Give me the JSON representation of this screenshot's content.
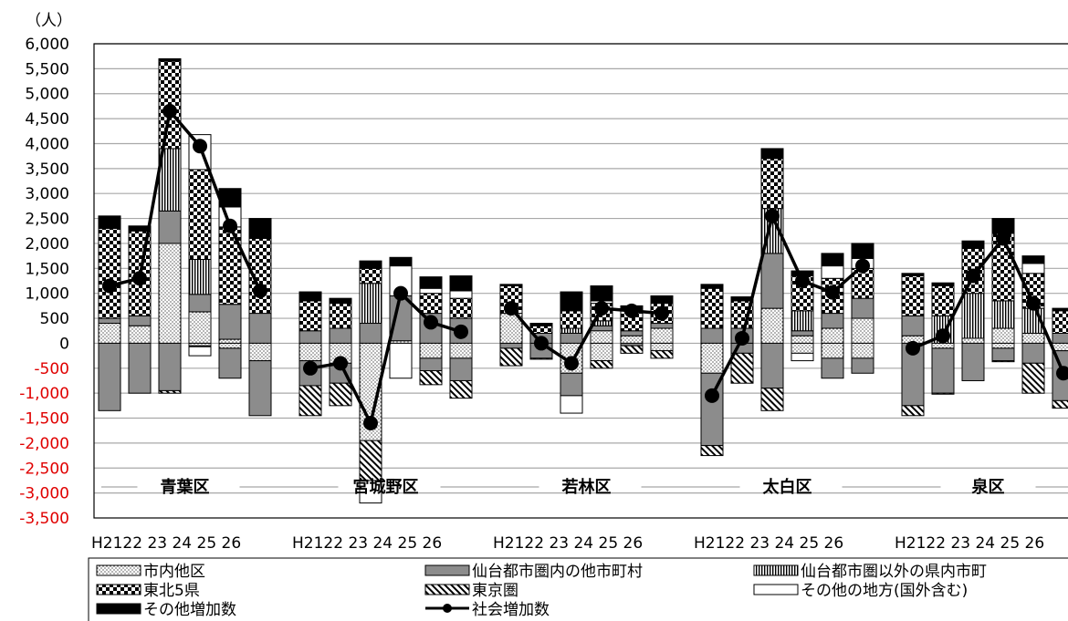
{
  "chart_data": {
    "type": "bar",
    "stacked": true,
    "unit_label": "（人）",
    "ylim": [
      -3500,
      6000
    ],
    "y_ticks": [
      6000,
      5500,
      5000,
      4500,
      4000,
      3500,
      3000,
      2500,
      2000,
      1500,
      1000,
      500,
      0,
      -500,
      -1000,
      -1500,
      -2000,
      -2500,
      -3000,
      -3500
    ],
    "y_tick_labels": [
      "6,000",
      "5,500",
      "5,000",
      "4,500",
      "4,000",
      "3,500",
      "3,000",
      "2,500",
      "2,000",
      "1,500",
      "1,000",
      "500",
      "0",
      "-500",
      "-1,000",
      "-1,500",
      "-2,000",
      "-2,500",
      "-3,000",
      "-3,500"
    ],
    "negative_tick_color": "#e00000",
    "gridlines": true,
    "year_labels": [
      "H21",
      "22",
      "23",
      "24",
      "25",
      "26"
    ],
    "groups": [
      {
        "name": "青葉区",
        "stacks": [
          {
            "pos": [
              400,
              100,
              0,
              1800,
              0,
              250
            ],
            "neg": [
              0,
              -1350,
              0
            ]
          },
          {
            "pos": [
              350,
              200,
              0,
              1700,
              0,
              100
            ],
            "neg": [
              0,
              -1000,
              0
            ]
          },
          {
            "pos": [
              2000,
              650,
              1250,
              1750,
              0,
              50
            ],
            "neg": [
              0,
              -950,
              -50
            ]
          },
          {
            "pos": [
              630,
              350,
              700,
              1800,
              700,
              0
            ],
            "neg": [
              -50,
              -20,
              0,
              -180
            ]
          },
          {
            "pos": [
              80,
              700,
              0,
              1550,
              400,
              370
            ],
            "neg": [
              -100,
              -600,
              0
            ]
          },
          {
            "pos": [
              0,
              600,
              0,
              1500,
              0,
              400
            ],
            "neg": [
              -350,
              -1100,
              0
            ]
          }
        ],
        "social": [
          1150,
          1300,
          4650,
          3950,
          2350,
          1050
        ]
      },
      {
        "name": "宮城野区",
        "stacks": [
          {
            "pos": [
              0,
              250,
              0,
              600,
              0,
              180
            ],
            "neg": [
              -350,
              -500,
              -600
            ]
          },
          {
            "pos": [
              0,
              300,
              0,
              500,
              0,
              100
            ],
            "neg": [
              -400,
              -400,
              -450
            ]
          },
          {
            "pos": [
              0,
              400,
              800,
              300,
              0,
              150
            ],
            "neg": [
              -1950,
              0,
              -800,
              -450
            ]
          },
          {
            "pos": [
              50,
              900,
              0,
              0,
              600,
              170
            ],
            "neg": [
              0,
              0,
              0,
              -700
            ]
          },
          {
            "pos": [
              0,
              600,
              0,
              400,
              100,
              230
            ],
            "neg": [
              -300,
              -250,
              -280
            ]
          },
          {
            "pos": [
              0,
              500,
              0,
              400,
              150,
              300
            ],
            "neg": [
              -300,
              -450,
              -350
            ]
          }
        ],
        "social": [
          -500,
          -400,
          -1600,
          1000,
          420,
          230
        ]
      },
      {
        "name": "若林区",
        "stacks": [
          {
            "pos": [
              600,
              0,
              0,
              550,
              0,
              30
            ],
            "neg": [
              0,
              -100,
              -350
            ]
          },
          {
            "pos": [
              0,
              200,
              0,
              150,
              0,
              50
            ],
            "neg": [
              0,
              -300,
              -20
            ]
          },
          {
            "pos": [
              0,
              200,
              100,
              350,
              0,
              380
            ],
            "neg": [
              -600,
              -450,
              0,
              -350
            ]
          },
          {
            "pos": [
              250,
              100,
              100,
              350,
              50,
              300
            ],
            "neg": [
              -350,
              0,
              -150
            ]
          },
          {
            "pos": [
              150,
              100,
              0,
              400,
              0,
              100
            ],
            "neg": [
              0,
              -50,
              -150
            ]
          },
          {
            "pos": [
              300,
              100,
              0,
              400,
              0,
              150
            ],
            "neg": [
              -150,
              0,
              -150
            ]
          }
        ],
        "social": [
          700,
          0,
          -400,
          700,
          650,
          600
        ]
      },
      {
        "name": "太白区",
        "stacks": [
          {
            "pos": [
              0,
              300,
              0,
              800,
              0,
              80
            ],
            "neg": [
              -600,
              -1450,
              -200
            ]
          },
          {
            "pos": [
              0,
              300,
              0,
              550,
              0,
              80
            ],
            "neg": [
              0,
              -200,
              -600
            ]
          },
          {
            "pos": [
              700,
              1100,
              900,
              1000,
              0,
              200
            ],
            "neg": [
              0,
              -900,
              -450
            ]
          },
          {
            "pos": [
              150,
              100,
              400,
              700,
              0,
              100
            ],
            "neg": [
              -200,
              0,
              0,
              -150
            ]
          },
          {
            "pos": [
              300,
              300,
              0,
              700,
              250,
              250
            ],
            "neg": [
              -300,
              -400,
              0
            ]
          },
          {
            "pos": [
              500,
              400,
              0,
              600,
              200,
              300
            ],
            "neg": [
              -300,
              -300,
              0
            ]
          }
        ],
        "social": [
          -1050,
          100,
          2550,
          1250,
          1020,
          1550
        ]
      },
      {
        "name": "泉区",
        "stacks": [
          {
            "pos": [
              150,
              400,
              0,
              800,
              0,
              50
            ],
            "neg": [
              0,
              -1250,
              -200
            ]
          },
          {
            "pos": [
              0,
              0,
              550,
              600,
              0,
              60
            ],
            "neg": [
              -100,
              -900,
              -20
            ]
          },
          {
            "pos": [
              100,
              0,
              900,
              900,
              0,
              150
            ],
            "neg": [
              0,
              -750,
              0
            ]
          },
          {
            "pos": [
              300,
              0,
              550,
              1350,
              0,
              300
            ],
            "neg": [
              -100,
              -250,
              -20
            ]
          },
          {
            "pos": [
              200,
              0,
              500,
              700,
              200,
              150
            ],
            "neg": [
              0,
              -400,
              -600
            ]
          },
          {
            "pos": [
              0,
              200,
              0,
              450,
              0,
              50
            ],
            "neg": [
              -150,
              -1000,
              -150
            ]
          }
        ],
        "social": [
          -100,
          150,
          1350,
          2100,
          800,
          -600
        ]
      }
    ],
    "legend": [
      {
        "key": "shinai",
        "label": "市内他区"
      },
      {
        "key": "toshiken",
        "label": "仙台都市圏内の他市町村"
      },
      {
        "key": "kennai",
        "label": "仙台都市圏以外の県内市町"
      },
      {
        "key": "tohoku",
        "label": "東北5県"
      },
      {
        "key": "tokyo",
        "label": "東京圏"
      },
      {
        "key": "other",
        "label": "その他の地方(国外含む)"
      },
      {
        "key": "etc",
        "label": "その他増加数"
      },
      {
        "key": "social",
        "label": "社会増加数"
      }
    ]
  }
}
